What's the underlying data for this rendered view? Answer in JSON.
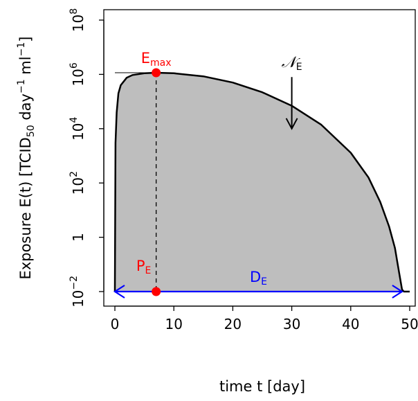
{
  "chart_data": {
    "type": "area",
    "xlabel": "time t [day]",
    "ylabel": {
      "main": "Exposure E(t) [TCID",
      "sub": "50",
      "unit_a": " day",
      "exp_a": "−1",
      "unit_b": " ml",
      "exp_b": "−1",
      "close": "]"
    },
    "x_scale": "linear",
    "y_scale": "log10",
    "xlim": [
      0,
      50
    ],
    "ylim": [
      0.01,
      100000000
    ],
    "x_ticks": [
      {
        "value": 0,
        "label": "0"
      },
      {
        "value": 10,
        "label": "10"
      },
      {
        "value": 20,
        "label": "20"
      },
      {
        "value": 30,
        "label": "30"
      },
      {
        "value": 40,
        "label": "40"
      },
      {
        "value": 50,
        "label": "50"
      }
    ],
    "y_ticks": [
      {
        "value": 0.01,
        "base": "10",
        "exp": "−2"
      },
      {
        "value": 1,
        "base": "1",
        "exp": ""
      },
      {
        "value": 100,
        "base": "10",
        "exp": "2"
      },
      {
        "value": 10000,
        "base": "10",
        "exp": "4"
      },
      {
        "value": 1000000,
        "base": "10",
        "exp": "6"
      },
      {
        "value": 100000000,
        "base": "10",
        "exp": "8"
      }
    ],
    "series": [
      {
        "x": [
          0,
          0.1,
          0.3,
          0.6,
          1,
          2,
          3,
          5,
          7,
          10,
          15,
          20,
          25,
          30,
          35,
          40,
          43,
          45,
          46.5,
          47.5,
          48.2,
          48.7,
          49,
          50
        ],
        "y": [
          0.01,
          3000,
          40000,
          200000,
          400000,
          750000,
          950000,
          1100000,
          1150000,
          1100000,
          850000,
          500000,
          220000,
          70000,
          14000,
          1300,
          160,
          20,
          2.5,
          0.4,
          0.05,
          0.012,
          0.01,
          0.01
        ],
        "fill": "#bebebe",
        "stroke": "#000000"
      }
    ],
    "annotations": {
      "emax": {
        "label": "E",
        "sub": "max",
        "x": 7,
        "y": 1150000,
        "color": "#ff0000"
      },
      "pe": {
        "label": "P",
        "sub": "E",
        "x": 7,
        "y": 0.01,
        "color": "#ff0000"
      },
      "de": {
        "label": "D",
        "sub": "E",
        "x_start": 0,
        "x_end": 48.7,
        "y": 0.01,
        "color": "#0000ff"
      },
      "ne": {
        "label": "𝒩",
        "sub": "E",
        "x": 30,
        "y_from": 800000,
        "y_to": 10000,
        "color": "#000000"
      }
    },
    "grid": false,
    "legend": "none"
  }
}
